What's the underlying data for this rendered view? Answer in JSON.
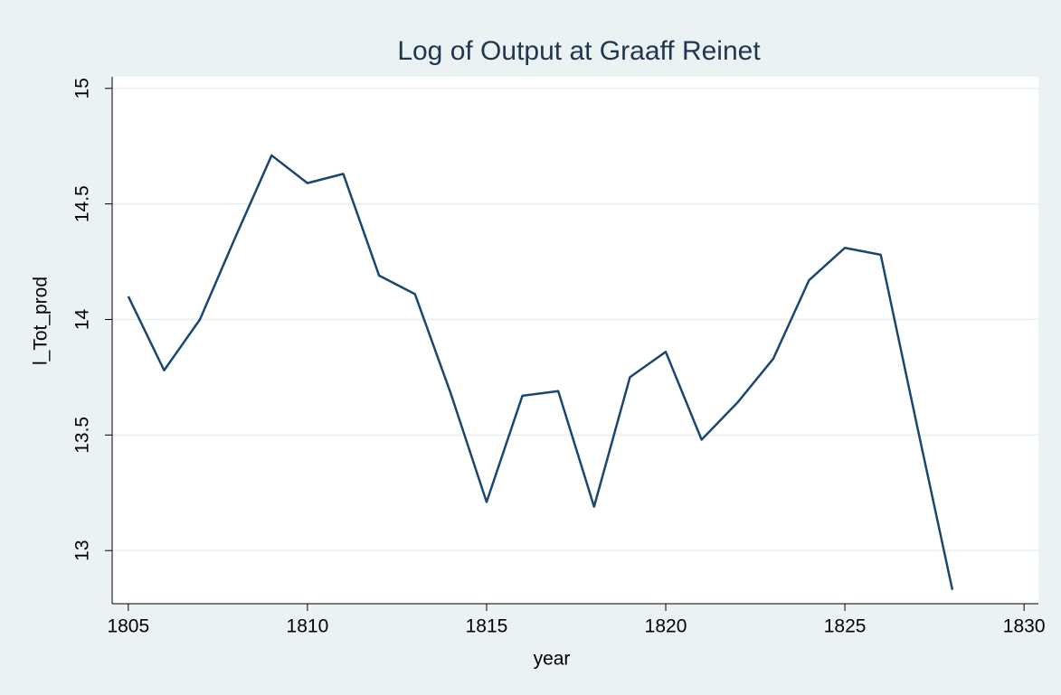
{
  "chart_data": {
    "type": "line",
    "title": "Log of Output at Graaff Reinet",
    "x_label": "year",
    "y_label": "l_Tot_prod",
    "x": [
      1805,
      1806,
      1807,
      1808,
      1809,
      1810,
      1811,
      1812,
      1813,
      1814,
      1815,
      1816,
      1817,
      1818,
      1819,
      1820,
      1821,
      1822,
      1823,
      1824,
      1825,
      1826,
      1827,
      1828
    ],
    "series": [
      {
        "name": "l_Tot_prod",
        "color": "#1a476f",
        "values": [
          14.1,
          13.78,
          14.0,
          14.36,
          14.71,
          14.59,
          14.63,
          14.19,
          14.11,
          13.68,
          13.21,
          13.67,
          13.69,
          13.19,
          13.75,
          13.86,
          13.48,
          13.64,
          13.83,
          14.17,
          14.31,
          14.28,
          13.55,
          12.83
        ]
      }
    ],
    "xlim": [
      1804.55,
      1830.4
    ],
    "xticks": [
      1805,
      1810,
      1815,
      1820,
      1825,
      1830
    ],
    "ylim": [
      12.77,
      15.05
    ],
    "yticks": [
      13,
      13.5,
      14,
      14.5,
      15
    ],
    "grid": true
  }
}
